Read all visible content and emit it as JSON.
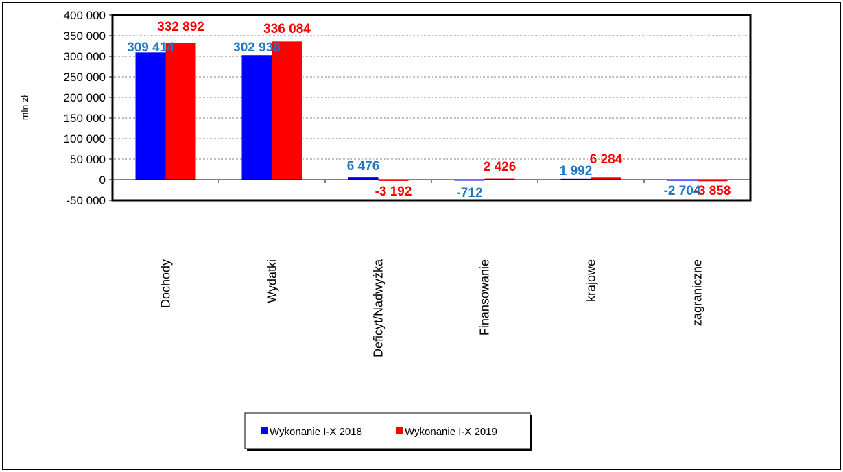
{
  "chart_data": {
    "type": "bar",
    "title": "",
    "xlabel": "",
    "ylabel": "mln zł",
    "ylim": [
      -50000,
      400000
    ],
    "yticks": [
      -50000,
      0,
      50000,
      100000,
      150000,
      200000,
      250000,
      300000,
      350000,
      400000
    ],
    "ytick_labels": [
      "-50 000",
      "0",
      "50 000",
      "100 000",
      "150 000",
      "200 000",
      "250 000",
      "300 000",
      "350 000",
      "400 000"
    ],
    "grid": true,
    "legend_position": "bottom",
    "categories": [
      "Dochody",
      "Wydatki",
      "Deficyt/Nadwyżka",
      "Finansowanie",
      "krajowe",
      "zagraniczne"
    ],
    "series": [
      {
        "name": "Wykonanie I-X 2018",
        "color": "#0000FF",
        "label_color": "#1F77C4",
        "values": [
          309414,
          302938,
          6476,
          -712,
          1992,
          -2704
        ],
        "labels": [
          "309 414",
          "302 938",
          "6 476",
          "-712",
          "1 992",
          "-2 704"
        ]
      },
      {
        "name": "Wykonanie I-X 2019",
        "color": "#FF0000",
        "label_color": "#FF0000",
        "values": [
          332892,
          336084,
          -3192,
          2426,
          6284,
          -3858
        ],
        "labels": [
          "332 892",
          "336 084",
          "-3 192",
          "2 426",
          "6 284",
          "-3 858"
        ]
      }
    ]
  }
}
